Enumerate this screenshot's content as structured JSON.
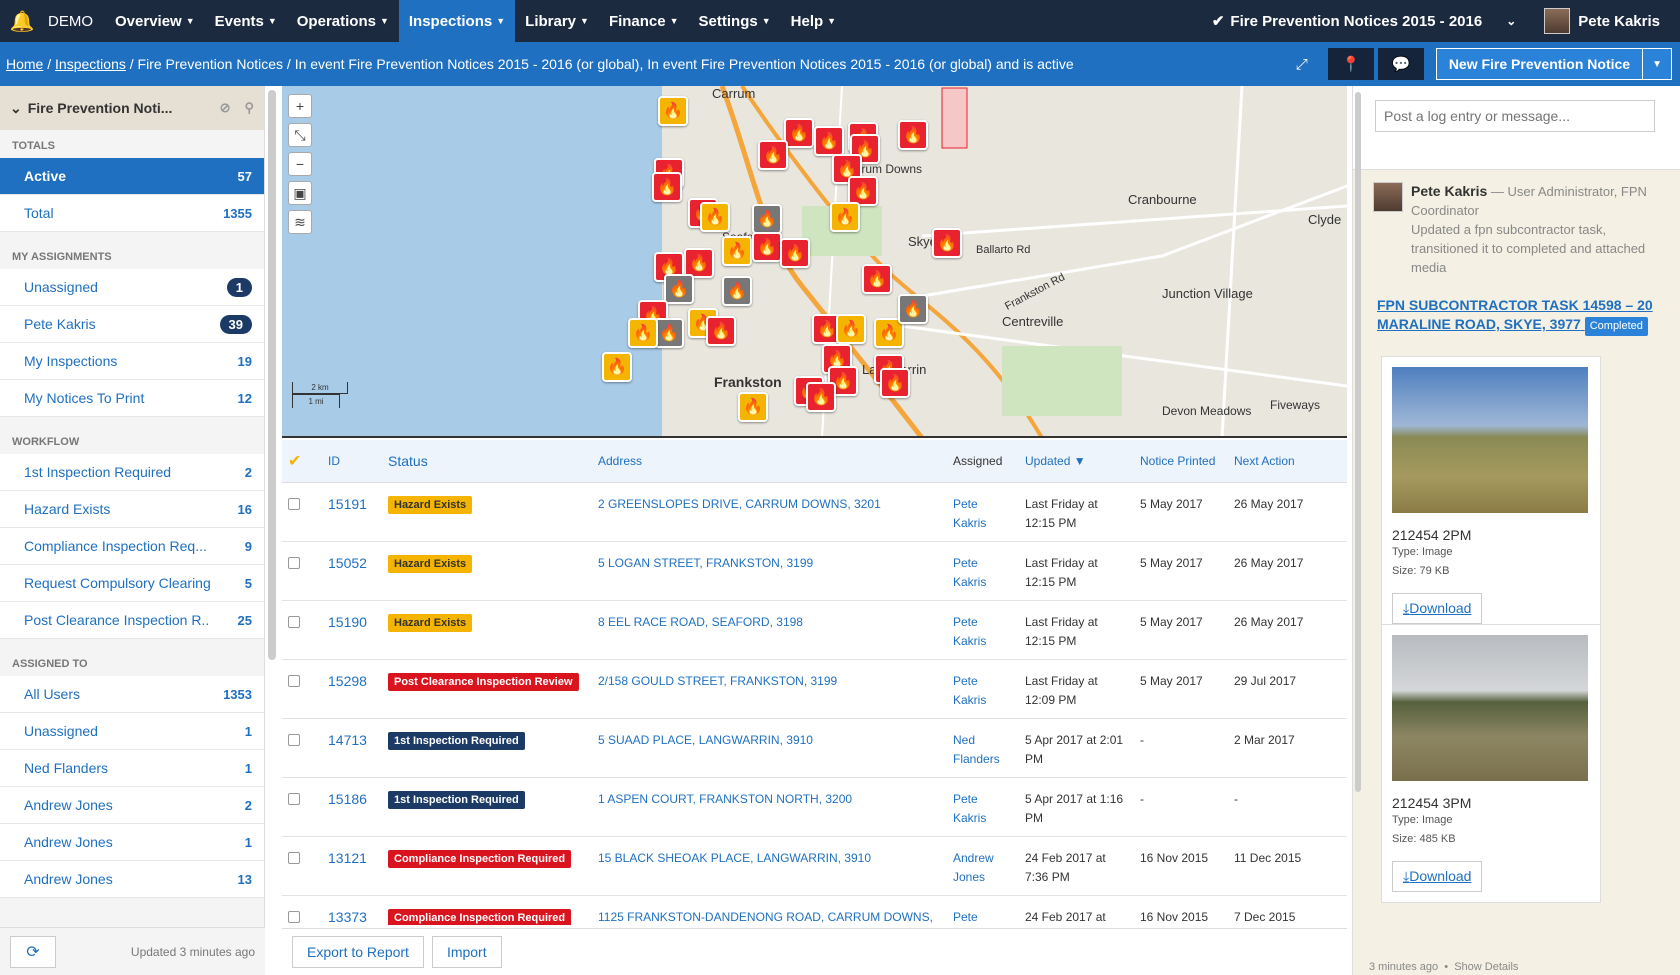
{
  "nav": {
    "brand": "DEMO",
    "items": [
      "Overview",
      "Events",
      "Operations",
      "Inspections",
      "Library",
      "Finance",
      "Settings",
      "Help"
    ],
    "active_index": 3,
    "event": "Fire Prevention Notices 2015 - 2016",
    "user": "Pete Kakris"
  },
  "breadcrumb": {
    "home": "Home",
    "inspections": "Inspections",
    "rest": " / Fire Prevention Notices / In event Fire Prevention Notices 2015 - 2016 (or global), In event Fire Prevention Notices 2015 - 2016 (or global) and is active",
    "sep": " / ",
    "new_button": "New Fire Prevention Notice"
  },
  "sidebar": {
    "title": "Fire Prevention Noti...",
    "sections": [
      {
        "title": "TOTALS",
        "items": [
          {
            "label": "Active",
            "count": "57",
            "active": true
          },
          {
            "label": "Total",
            "count": "1355"
          }
        ]
      },
      {
        "title": "MY ASSIGNMENTS",
        "items": [
          {
            "label": "Unassigned",
            "count": "1",
            "pill": true
          },
          {
            "label": "Pete Kakris",
            "count": "39",
            "pill": true
          },
          {
            "label": "My Inspections",
            "count": "19"
          },
          {
            "label": "My Notices To Print",
            "count": "12"
          }
        ]
      },
      {
        "title": "WORKFLOW",
        "items": [
          {
            "label": "1st Inspection Required",
            "count": "2"
          },
          {
            "label": "Hazard Exists",
            "count": "16"
          },
          {
            "label": "Compliance Inspection Req...",
            "count": "9"
          },
          {
            "label": "Request Compulsory Clearing",
            "count": "5"
          },
          {
            "label": "Post Clearance Inspection R..",
            "count": "25"
          }
        ]
      },
      {
        "title": "ASSIGNED TO",
        "items": [
          {
            "label": "All Users",
            "count": "1353"
          },
          {
            "label": "Unassigned",
            "count": "1"
          },
          {
            "label": "Ned Flanders",
            "count": "1"
          },
          {
            "label": "Andrew Jones",
            "count": "2"
          },
          {
            "label": "Andrew Jones",
            "count": "1"
          },
          {
            "label": "Andrew Jones",
            "count": "13"
          }
        ]
      }
    ],
    "updated": "Updated 3 minutes ago"
  },
  "map": {
    "labels": [
      "Carrum",
      "Cranbourne",
      "Clyde",
      "Skye",
      "Centreville",
      "Junction Village",
      "Frankston",
      "Langwarrin",
      "Devon Meadows",
      "Fiveways",
      "Seaford",
      "Carrum Downs",
      "Ballarto Rd",
      "Frankston Rd"
    ],
    "scale_km": "2 km",
    "scale_mi": "1 mi"
  },
  "table": {
    "headers": {
      "id": "ID",
      "status": "Status",
      "address": "Address",
      "assigned": "Assigned",
      "updated": "Updated ▼",
      "printed": "Notice Printed",
      "next": "Next Action"
    },
    "rows": [
      {
        "id": "15191",
        "status": "Hazard Exists",
        "color": "yel",
        "address": "2 GREENSLOPES DRIVE, CARRUM DOWNS, 3201",
        "assigned": "Pete Kakris",
        "updated": "Last Friday at 12:15 PM",
        "printed": "5 May 2017",
        "next": "26 May 2017"
      },
      {
        "id": "15052",
        "status": "Hazard Exists",
        "color": "yel",
        "address": "5 LOGAN STREET, FRANKSTON, 3199",
        "assigned": "Pete Kakris",
        "updated": "Last Friday at 12:15 PM",
        "printed": "5 May 2017",
        "next": "26 May 2017"
      },
      {
        "id": "15190",
        "status": "Hazard Exists",
        "color": "yel",
        "address": "8 EEL RACE ROAD, SEAFORD, 3198",
        "assigned": "Pete Kakris",
        "updated": "Last Friday at 12:15 PM",
        "printed": "5 May 2017",
        "next": "26 May 2017"
      },
      {
        "id": "15298",
        "status": "Post Clearance Inspection Review",
        "color": "red",
        "address": "2/158 GOULD STREET, FRANKSTON, 3199",
        "assigned": "Pete Kakris",
        "updated": "Last Friday at 12:09 PM",
        "printed": "5 May 2017",
        "next": "29 Jul 2017"
      },
      {
        "id": "14713",
        "status": "1st Inspection Required",
        "color": "navy",
        "address": "5 SUAAD PLACE, LANGWARRIN, 3910",
        "assigned": "Ned Flanders",
        "updated": "5 Apr 2017 at 2:01 PM",
        "printed": "-",
        "next": "2 Mar 2017"
      },
      {
        "id": "15186",
        "status": "1st Inspection Required",
        "color": "navy",
        "address": "1 ASPEN COURT, FRANKSTON NORTH, 3200",
        "assigned": "Pete Kakris",
        "updated": "5 Apr 2017 at 1:16 PM",
        "printed": "-",
        "next": "-"
      },
      {
        "id": "13121",
        "status": "Compliance Inspection Required",
        "color": "red",
        "address": "15 BLACK SHEOAK PLACE, LANGWARRIN, 3910",
        "assigned": "Andrew Jones",
        "updated": "24 Feb 2017 at 7:36 PM",
        "printed": "16 Nov 2015",
        "next": "11 Dec 2015"
      },
      {
        "id": "13373",
        "status": "Compliance Inspection Required",
        "color": "red",
        "address": "1125 FRANKSTON-DANDENONG ROAD, CARRUM DOWNS,",
        "assigned": "Pete Kakris",
        "updated": "24 Feb 2017 at",
        "printed": "16 Nov 2015",
        "next": "7 Dec 2015"
      }
    ],
    "export_label": "Export to Report",
    "import_label": "Import"
  },
  "panel": {
    "placeholder": "Post a log entry or message...",
    "author": "Pete Kakris",
    "role": " — User Administrator, FPN Coordinator",
    "message": "Updated a fpn subcontractor task, transitioned it to completed and attached media",
    "task_title": "FPN SUBCONTRACTOR TASK 14598 – 20 MARALINE ROAD, SKYE, 3977",
    "task_status": "Completed",
    "attachments": [
      {
        "name": "212454 2PM",
        "type": "Type: Image",
        "size": "Size: 79 KB",
        "download": "Download"
      },
      {
        "name": "212454 3PM",
        "type": "Type: Image",
        "size": "Size: 485 KB",
        "download": "Download"
      }
    ],
    "footer_time": "3 minutes ago",
    "footer_link": "Show Details"
  }
}
